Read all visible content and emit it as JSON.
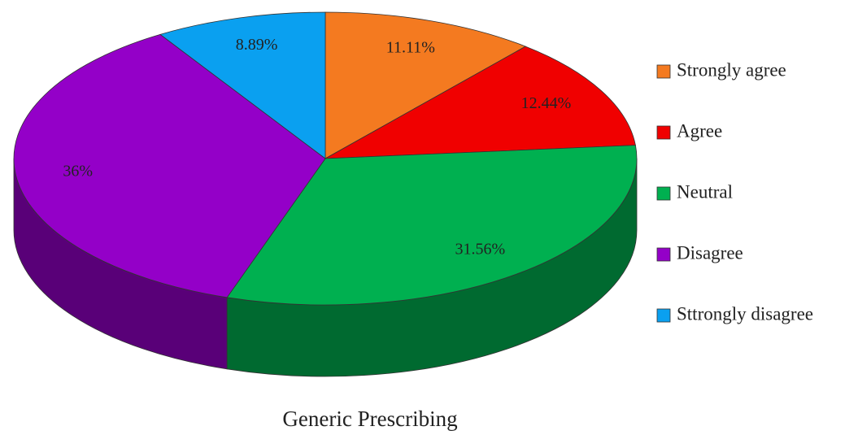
{
  "chart_data": {
    "type": "pie",
    "title": "Generic Prescribing",
    "categories": [
      "Strongly agree",
      "Agree",
      "Neutral",
      "Disagree",
      "Sttrongly disagree"
    ],
    "values": [
      11.11,
      12.44,
      31.56,
      36,
      8.89
    ],
    "value_labels": [
      "11.11%",
      "12.44%",
      "31.56%",
      "36%",
      "8.89%"
    ],
    "colors": [
      "#f47a20",
      "#f00000",
      "#00b050",
      "#9400c8",
      "#0aa0f0"
    ],
    "legend": "right"
  }
}
